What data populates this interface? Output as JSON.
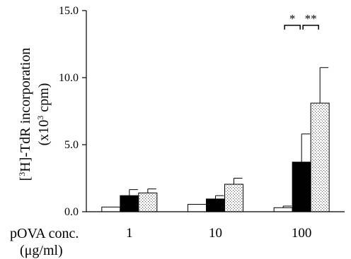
{
  "chart_data": {
    "type": "bar",
    "ylabel_line1_parts": [
      "[",
      "3",
      "H]-TdR incorporation"
    ],
    "ylabel_line2_parts": [
      "(x10",
      "3",
      " cpm)"
    ],
    "xlabel_line1": "pOVA conc.",
    "xlabel_line2": "(μg/ml)",
    "categories": [
      "1",
      "10",
      "100"
    ],
    "ylim": [
      0,
      15
    ],
    "yticks": [
      {
        "value": 0,
        "label": "0.0"
      },
      {
        "value": 5,
        "label": "5.0"
      },
      {
        "value": 10,
        "label": "10.0"
      },
      {
        "value": 15,
        "label": "15.0"
      }
    ],
    "grid": false,
    "legend": false,
    "series": [
      {
        "fill": "white",
        "values": [
          0.35,
          0.55,
          0.3
        ],
        "errors": [
          0.0,
          0.0,
          0.12
        ]
      },
      {
        "fill": "black",
        "values": [
          1.2,
          0.95,
          3.7
        ],
        "errors": [
          0.45,
          0.25,
          2.1
        ]
      },
      {
        "fill": "dotted",
        "values": [
          1.4,
          2.05,
          8.1
        ],
        "errors": [
          0.3,
          0.45,
          2.65
        ]
      }
    ],
    "annotations": [
      {
        "label": "*",
        "category": "100",
        "from_series": 0,
        "to_series": 1,
        "y": 13.9
      },
      {
        "label": "**",
        "category": "100",
        "from_series": 1,
        "to_series": 2,
        "y": 13.9
      }
    ],
    "colors": {
      "axis": "#000000",
      "bar_edge": "#000000",
      "black_bar": "#000000",
      "white_bar": "#ffffff"
    }
  }
}
